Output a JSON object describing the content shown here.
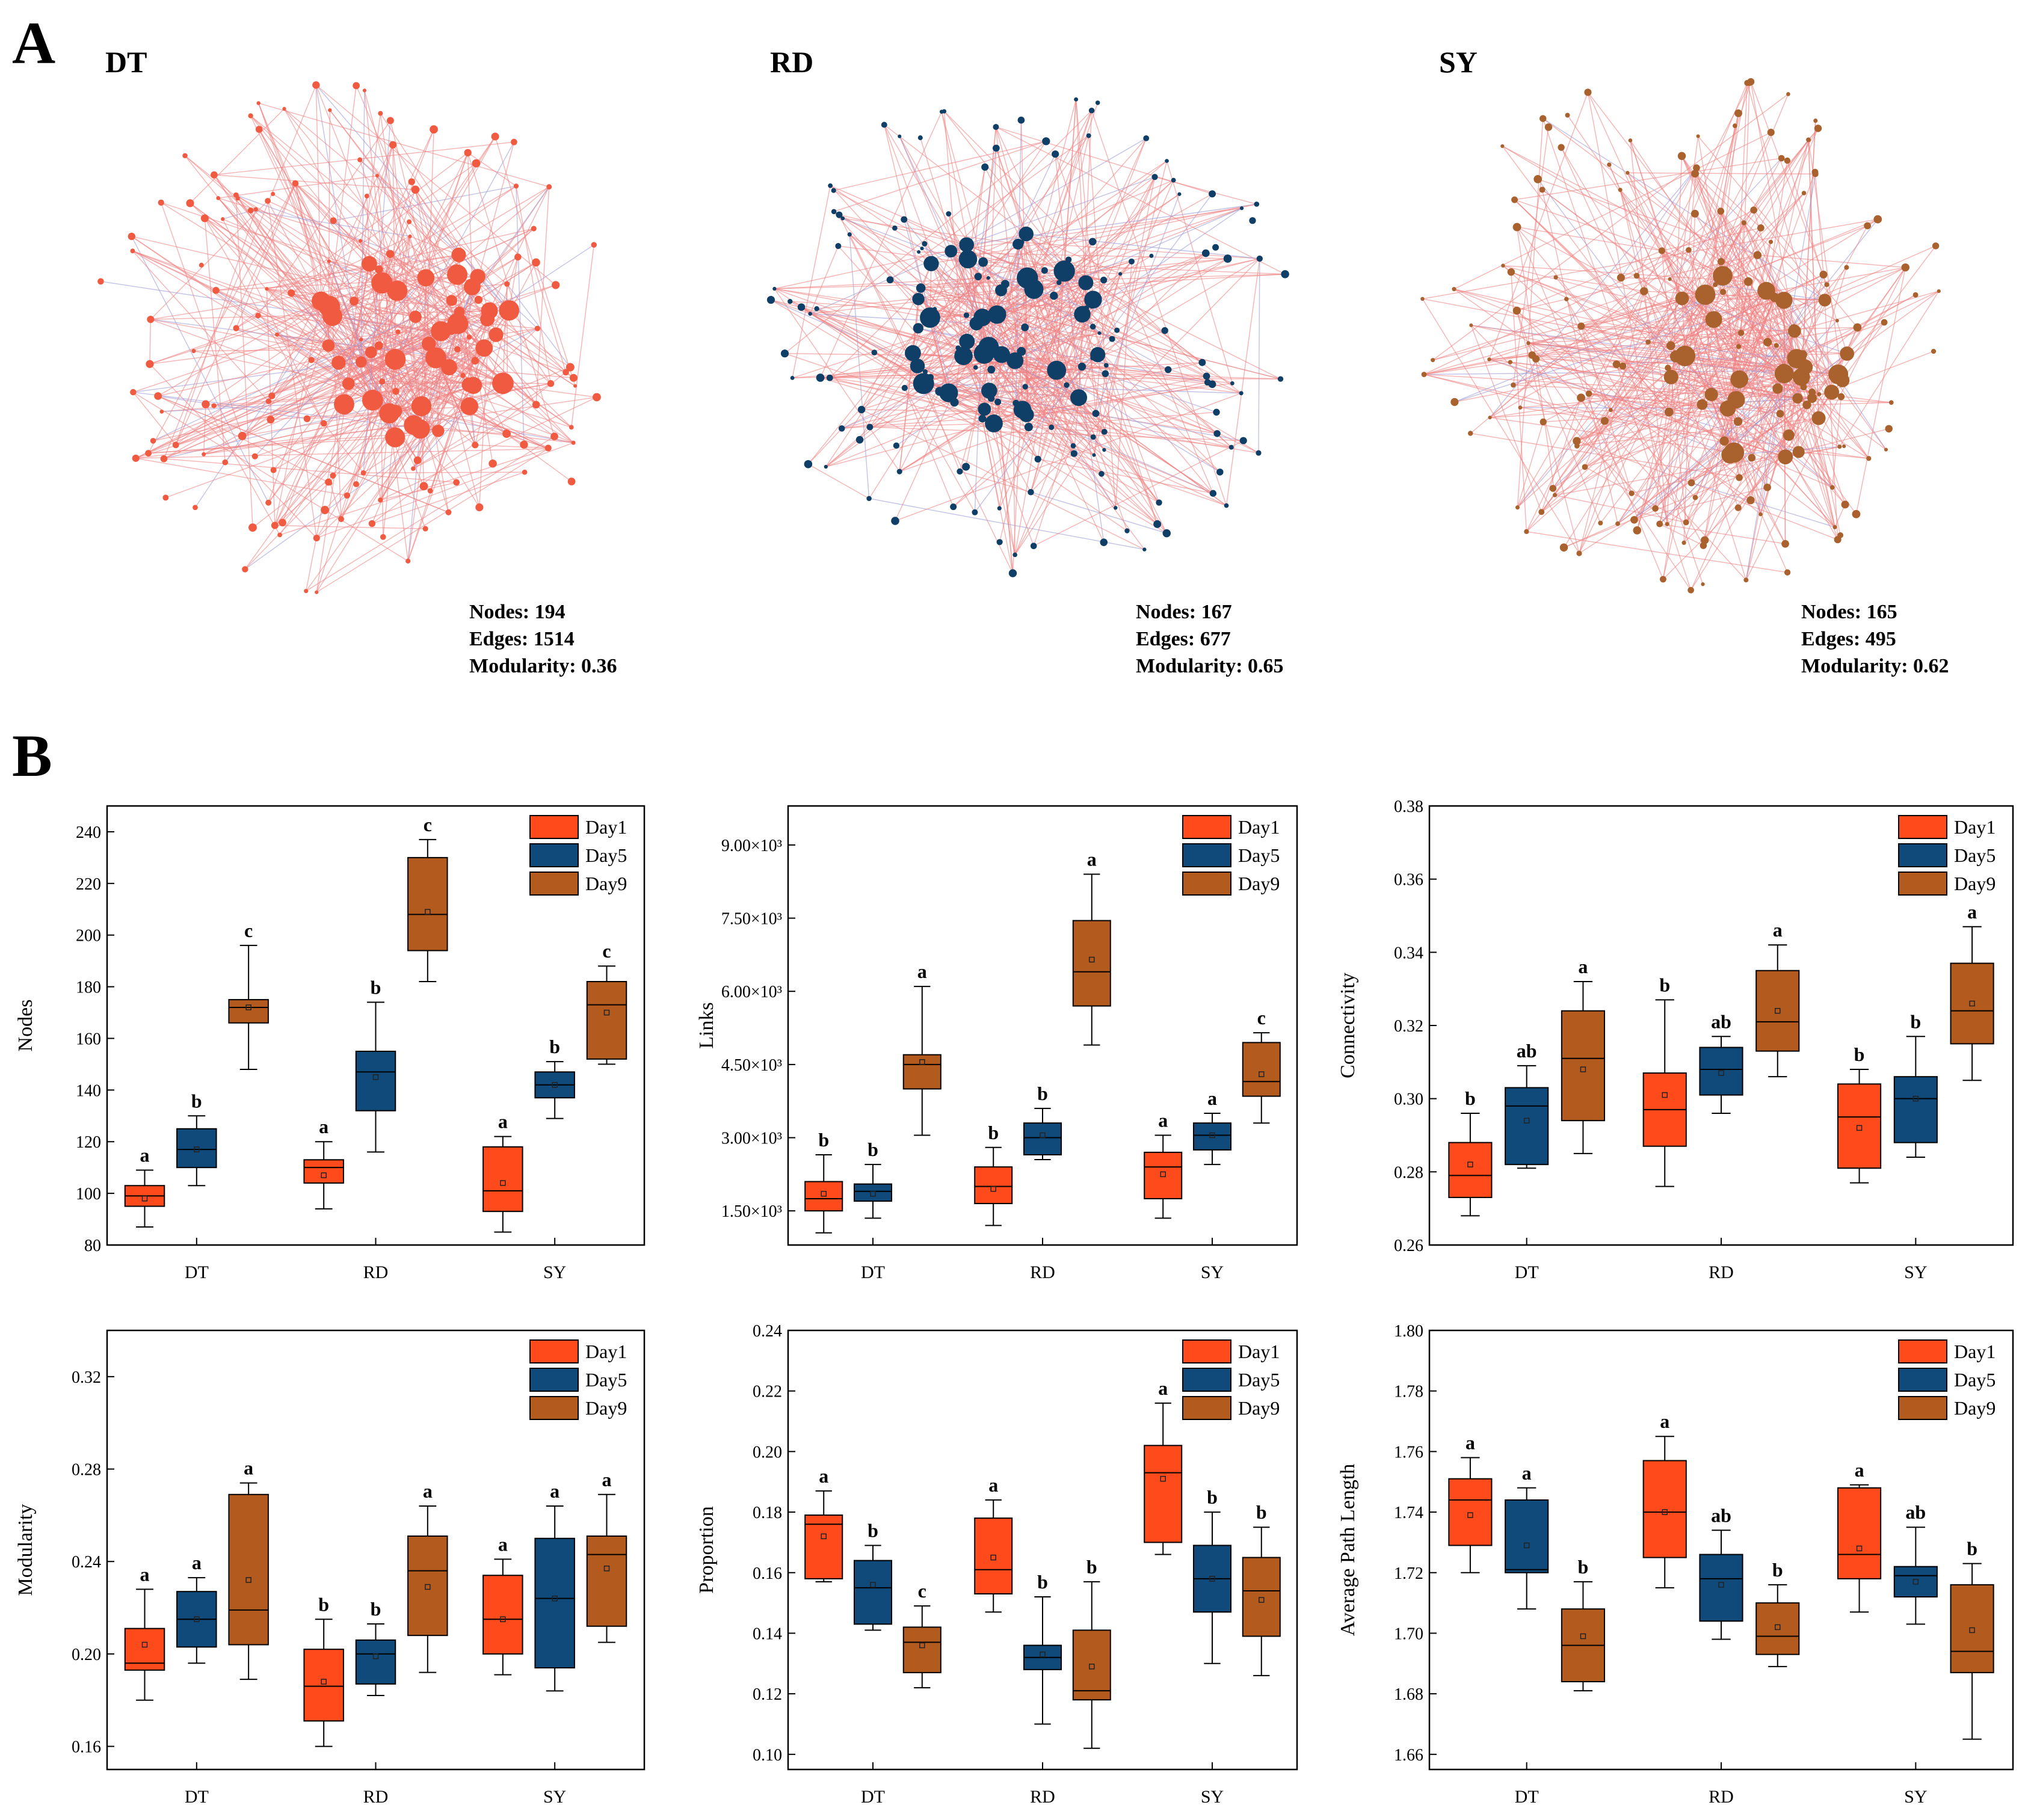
{
  "panel_labels": {
    "a": "A",
    "b": "B"
  },
  "colors": {
    "day1": "#ff4a1c",
    "day5": "#0f4a7a",
    "day9": "#b35a1e",
    "edge_pos": "#f08080",
    "edge_neg": "#9a9ad8"
  },
  "networks": [
    {
      "id": "DT",
      "title": "DT",
      "color": "#ef5a40",
      "stats": [
        "Nodes: 194",
        "Edges: 1514",
        "Modularity: 0.36"
      ]
    },
    {
      "id": "RD",
      "title": "RD",
      "color": "#0f3f66",
      "stats": [
        "Nodes: 167",
        "Edges: 677",
        "Modularity: 0.65"
      ]
    },
    {
      "id": "SY",
      "title": "SY",
      "color": "#a9622e",
      "stats": [
        "Nodes: 165",
        "Edges: 495",
        "Modularity: 0.62"
      ]
    }
  ],
  "chart_data": [
    {
      "type": "box",
      "ylabel": "Nodes",
      "categories": [
        "DT",
        "RD",
        "SY"
      ],
      "ylim": [
        80,
        250
      ],
      "yticks": [
        80,
        100,
        120,
        140,
        160,
        180,
        200,
        220,
        240
      ],
      "tick_labels": [
        "80",
        "100",
        "120",
        "140",
        "160",
        "180",
        "200",
        "220",
        "240"
      ],
      "legend": [
        "Day1",
        "Day5",
        "Day9"
      ],
      "series": [
        {
          "name": "Day1",
          "boxes": [
            {
              "min": 87,
              "q1": 95,
              "median": 99,
              "q3": 103,
              "max": 109,
              "mean": 98,
              "sig": "a"
            },
            {
              "min": 94,
              "q1": 104,
              "median": 110,
              "q3": 113,
              "max": 120,
              "mean": 107,
              "sig": "a"
            },
            {
              "min": 85,
              "q1": 93,
              "median": 101,
              "q3": 118,
              "max": 122,
              "mean": 104,
              "sig": "a"
            }
          ]
        },
        {
          "name": "Day5",
          "boxes": [
            {
              "min": 103,
              "q1": 110,
              "median": 117,
              "q3": 125,
              "max": 130,
              "mean": 117,
              "sig": "b"
            },
            {
              "min": 116,
              "q1": 132,
              "median": 147,
              "q3": 155,
              "max": 174,
              "mean": 145,
              "sig": "b"
            },
            {
              "min": 129,
              "q1": 137,
              "median": 142,
              "q3": 147,
              "max": 151,
              "mean": 142,
              "sig": "b"
            }
          ]
        },
        {
          "name": "Day9",
          "boxes": [
            {
              "min": 148,
              "q1": 166,
              "median": 172,
              "q3": 175,
              "max": 196,
              "mean": 172,
              "sig": "c"
            },
            {
              "min": 182,
              "q1": 194,
              "median": 208,
              "q3": 230,
              "max": 237,
              "mean": 209,
              "sig": "c"
            },
            {
              "min": 150,
              "q1": 152,
              "median": 173,
              "q3": 182,
              "max": 188,
              "mean": 170,
              "sig": "c"
            }
          ]
        }
      ]
    },
    {
      "type": "box",
      "ylabel": "Links",
      "categories": [
        "DT",
        "RD",
        "SY"
      ],
      "ylim": [
        800,
        9800
      ],
      "yticks": [
        1500,
        3000,
        4500,
        6000,
        7500,
        9000
      ],
      "tick_labels": [
        "1.50×10³",
        "3.00×10³",
        "4.50×10³",
        "6.00×10³",
        "7.50×10³",
        "9.00×10³"
      ],
      "legend": [
        "Day1",
        "Day5",
        "Day9"
      ],
      "series": [
        {
          "name": "Day1",
          "boxes": [
            {
              "min": 1050,
              "q1": 1500,
              "median": 1750,
              "q3": 2100,
              "max": 2650,
              "mean": 1850,
              "sig": "b"
            },
            {
              "min": 1200,
              "q1": 1650,
              "median": 2000,
              "q3": 2400,
              "max": 2800,
              "mean": 1950,
              "sig": "b"
            },
            {
              "min": 1350,
              "q1": 1750,
              "median": 2400,
              "q3": 2700,
              "max": 3050,
              "mean": 2250,
              "sig": "a"
            }
          ]
        },
        {
          "name": "Day5",
          "boxes": [
            {
              "min": 1350,
              "q1": 1700,
              "median": 1900,
              "q3": 2050,
              "max": 2450,
              "mean": 1850,
              "sig": "b"
            },
            {
              "min": 2550,
              "q1": 2650,
              "median": 3000,
              "q3": 3300,
              "max": 3600,
              "mean": 3050,
              "sig": "b"
            },
            {
              "min": 2450,
              "q1": 2750,
              "median": 3050,
              "q3": 3300,
              "max": 3500,
              "mean": 3050,
              "sig": "a"
            }
          ]
        },
        {
          "name": "Day9",
          "boxes": [
            {
              "min": 3050,
              "q1": 4000,
              "median": 4500,
              "q3": 4700,
              "max": 6100,
              "mean": 4550,
              "sig": "a"
            },
            {
              "min": 4900,
              "q1": 5700,
              "median": 6400,
              "q3": 7450,
              "max": 8400,
              "mean": 6650,
              "sig": "a"
            },
            {
              "min": 3300,
              "q1": 3850,
              "median": 4150,
              "q3": 4950,
              "max": 5150,
              "mean": 4300,
              "sig": "c"
            }
          ]
        }
      ]
    },
    {
      "type": "box",
      "ylabel": "Connectivity",
      "categories": [
        "DT",
        "RD",
        "SY"
      ],
      "ylim": [
        0.26,
        0.38
      ],
      "yticks": [
        0.26,
        0.28,
        0.3,
        0.32,
        0.34,
        0.36,
        0.38
      ],
      "tick_labels": [
        "0.26",
        "0.28",
        "0.30",
        "0.32",
        "0.34",
        "0.36",
        "0.38"
      ],
      "legend": [
        "Day1",
        "Day5",
        "Day9"
      ],
      "series": [
        {
          "name": "Day1",
          "boxes": [
            {
              "min": 0.268,
              "q1": 0.273,
              "median": 0.279,
              "q3": 0.288,
              "max": 0.296,
              "mean": 0.282,
              "sig": "b"
            },
            {
              "min": 0.276,
              "q1": 0.287,
              "median": 0.297,
              "q3": 0.307,
              "max": 0.327,
              "mean": 0.301,
              "sig": "b"
            },
            {
              "min": 0.277,
              "q1": 0.281,
              "median": 0.295,
              "q3": 0.304,
              "max": 0.308,
              "mean": 0.292,
              "sig": "b"
            }
          ]
        },
        {
          "name": "Day5",
          "boxes": [
            {
              "min": 0.281,
              "q1": 0.282,
              "median": 0.298,
              "q3": 0.303,
              "max": 0.309,
              "mean": 0.294,
              "sig": "ab"
            },
            {
              "min": 0.296,
              "q1": 0.301,
              "median": 0.308,
              "q3": 0.314,
              "max": 0.317,
              "mean": 0.307,
              "sig": "ab"
            },
            {
              "min": 0.284,
              "q1": 0.288,
              "median": 0.3,
              "q3": 0.306,
              "max": 0.317,
              "mean": 0.3,
              "sig": "b"
            }
          ]
        },
        {
          "name": "Day9",
          "boxes": [
            {
              "min": 0.285,
              "q1": 0.294,
              "median": 0.311,
              "q3": 0.324,
              "max": 0.332,
              "mean": 0.308,
              "sig": "a"
            },
            {
              "min": 0.306,
              "q1": 0.313,
              "median": 0.321,
              "q3": 0.335,
              "max": 0.342,
              "mean": 0.324,
              "sig": "a"
            },
            {
              "min": 0.305,
              "q1": 0.315,
              "median": 0.324,
              "q3": 0.337,
              "max": 0.347,
              "mean": 0.326,
              "sig": "a"
            }
          ]
        }
      ]
    },
    {
      "type": "box",
      "ylabel": "Modularity",
      "categories": [
        "DT",
        "RD",
        "SY"
      ],
      "ylim": [
        0.15,
        0.34
      ],
      "yticks": [
        0.16,
        0.2,
        0.24,
        0.28,
        0.32
      ],
      "tick_labels": [
        "0.16",
        "0.20",
        "0.24",
        "0.28",
        "0.32"
      ],
      "legend": [
        "Day1",
        "Day5",
        "Day9"
      ],
      "series": [
        {
          "name": "Day1",
          "boxes": [
            {
              "min": 0.18,
              "q1": 0.193,
              "median": 0.196,
              "q3": 0.211,
              "max": 0.228,
              "mean": 0.204,
              "sig": "a"
            },
            {
              "min": 0.16,
              "q1": 0.171,
              "median": 0.186,
              "q3": 0.202,
              "max": 0.215,
              "mean": 0.188,
              "sig": "b"
            },
            {
              "min": 0.191,
              "q1": 0.2,
              "median": 0.215,
              "q3": 0.234,
              "max": 0.241,
              "mean": 0.215,
              "sig": "a"
            }
          ]
        },
        {
          "name": "Day5",
          "boxes": [
            {
              "min": 0.196,
              "q1": 0.203,
              "median": 0.215,
              "q3": 0.227,
              "max": 0.233,
              "mean": 0.215,
              "sig": "a"
            },
            {
              "min": 0.182,
              "q1": 0.187,
              "median": 0.2,
              "q3": 0.206,
              "max": 0.213,
              "mean": 0.199,
              "sig": "b"
            },
            {
              "min": 0.184,
              "q1": 0.194,
              "median": 0.224,
              "q3": 0.25,
              "max": 0.264,
              "mean": 0.224,
              "sig": "a"
            }
          ]
        },
        {
          "name": "Day9",
          "boxes": [
            {
              "min": 0.189,
              "q1": 0.204,
              "median": 0.219,
              "q3": 0.269,
              "max": 0.274,
              "mean": 0.232,
              "sig": "a"
            },
            {
              "min": 0.192,
              "q1": 0.208,
              "median": 0.236,
              "q3": 0.251,
              "max": 0.264,
              "mean": 0.229,
              "sig": "a"
            },
            {
              "min": 0.205,
              "q1": 0.212,
              "median": 0.243,
              "q3": 0.251,
              "max": 0.269,
              "mean": 0.237,
              "sig": "a"
            }
          ]
        }
      ]
    },
    {
      "type": "box",
      "ylabel": "Proportion",
      "categories": [
        "DT",
        "RD",
        "SY"
      ],
      "ylim": [
        0.095,
        0.24
      ],
      "yticks": [
        0.1,
        0.12,
        0.14,
        0.16,
        0.18,
        0.2,
        0.22,
        0.24
      ],
      "tick_labels": [
        "0.10",
        "0.12",
        "0.14",
        "0.16",
        "0.18",
        "0.20",
        "0.22",
        "0.24"
      ],
      "legend": [
        "Day1",
        "Day5",
        "Day9"
      ],
      "series": [
        {
          "name": "Day1",
          "boxes": [
            {
              "min": 0.157,
              "q1": 0.158,
              "median": 0.176,
              "q3": 0.179,
              "max": 0.187,
              "mean": 0.172,
              "sig": "a"
            },
            {
              "min": 0.147,
              "q1": 0.153,
              "median": 0.161,
              "q3": 0.178,
              "max": 0.184,
              "mean": 0.165,
              "sig": "a"
            },
            {
              "min": 0.166,
              "q1": 0.17,
              "median": 0.193,
              "q3": 0.202,
              "max": 0.216,
              "mean": 0.191,
              "sig": "a"
            }
          ]
        },
        {
          "name": "Day5",
          "boxes": [
            {
              "min": 0.141,
              "q1": 0.143,
              "median": 0.155,
              "q3": 0.164,
              "max": 0.169,
              "mean": 0.156,
              "sig": "b"
            },
            {
              "min": 0.11,
              "q1": 0.128,
              "median": 0.132,
              "q3": 0.136,
              "max": 0.152,
              "mean": 0.133,
              "sig": "b"
            },
            {
              "min": 0.13,
              "q1": 0.147,
              "median": 0.158,
              "q3": 0.169,
              "max": 0.18,
              "mean": 0.158,
              "sig": "b"
            }
          ]
        },
        {
          "name": "Day9",
          "boxes": [
            {
              "min": 0.122,
              "q1": 0.127,
              "median": 0.137,
              "q3": 0.142,
              "max": 0.149,
              "mean": 0.136,
              "sig": "c"
            },
            {
              "min": 0.102,
              "q1": 0.118,
              "median": 0.121,
              "q3": 0.141,
              "max": 0.157,
              "mean": 0.129,
              "sig": "b"
            },
            {
              "min": 0.126,
              "q1": 0.139,
              "median": 0.154,
              "q3": 0.165,
              "max": 0.175,
              "mean": 0.151,
              "sig": "b"
            }
          ]
        }
      ]
    },
    {
      "type": "box",
      "ylabel": "Average Path Length",
      "categories": [
        "DT",
        "RD",
        "SY"
      ],
      "ylim": [
        1.655,
        1.8
      ],
      "yticks": [
        1.66,
        1.68,
        1.7,
        1.72,
        1.74,
        1.76,
        1.78,
        1.8
      ],
      "tick_labels": [
        "1.66",
        "1.68",
        "1.70",
        "1.72",
        "1.74",
        "1.76",
        "1.78",
        "1.80"
      ],
      "legend": [
        "Day1",
        "Day5",
        "Day9"
      ],
      "series": [
        {
          "name": "Day1",
          "boxes": [
            {
              "min": 1.72,
              "q1": 1.729,
              "median": 1.744,
              "q3": 1.751,
              "max": 1.758,
              "mean": 1.739,
              "sig": "a"
            },
            {
              "min": 1.715,
              "q1": 1.725,
              "median": 1.74,
              "q3": 1.757,
              "max": 1.765,
              "mean": 1.74,
              "sig": "a"
            },
            {
              "min": 1.707,
              "q1": 1.718,
              "median": 1.726,
              "q3": 1.748,
              "max": 1.749,
              "mean": 1.728,
              "sig": "a"
            }
          ]
        },
        {
          "name": "Day5",
          "boxes": [
            {
              "min": 1.708,
              "q1": 1.72,
              "median": 1.721,
              "q3": 1.744,
              "max": 1.748,
              "mean": 1.729,
              "sig": "a"
            },
            {
              "min": 1.698,
              "q1": 1.704,
              "median": 1.718,
              "q3": 1.726,
              "max": 1.734,
              "mean": 1.716,
              "sig": "ab"
            },
            {
              "min": 1.703,
              "q1": 1.712,
              "median": 1.719,
              "q3": 1.722,
              "max": 1.735,
              "mean": 1.717,
              "sig": "ab"
            }
          ]
        },
        {
          "name": "Day9",
          "boxes": [
            {
              "min": 1.681,
              "q1": 1.684,
              "median": 1.696,
              "q3": 1.708,
              "max": 1.717,
              "mean": 1.699,
              "sig": "b"
            },
            {
              "min": 1.689,
              "q1": 1.693,
              "median": 1.699,
              "q3": 1.71,
              "max": 1.716,
              "mean": 1.702,
              "sig": "b"
            },
            {
              "min": 1.665,
              "q1": 1.687,
              "median": 1.694,
              "q3": 1.716,
              "max": 1.723,
              "mean": 1.701,
              "sig": "b"
            }
          ]
        }
      ]
    }
  ]
}
